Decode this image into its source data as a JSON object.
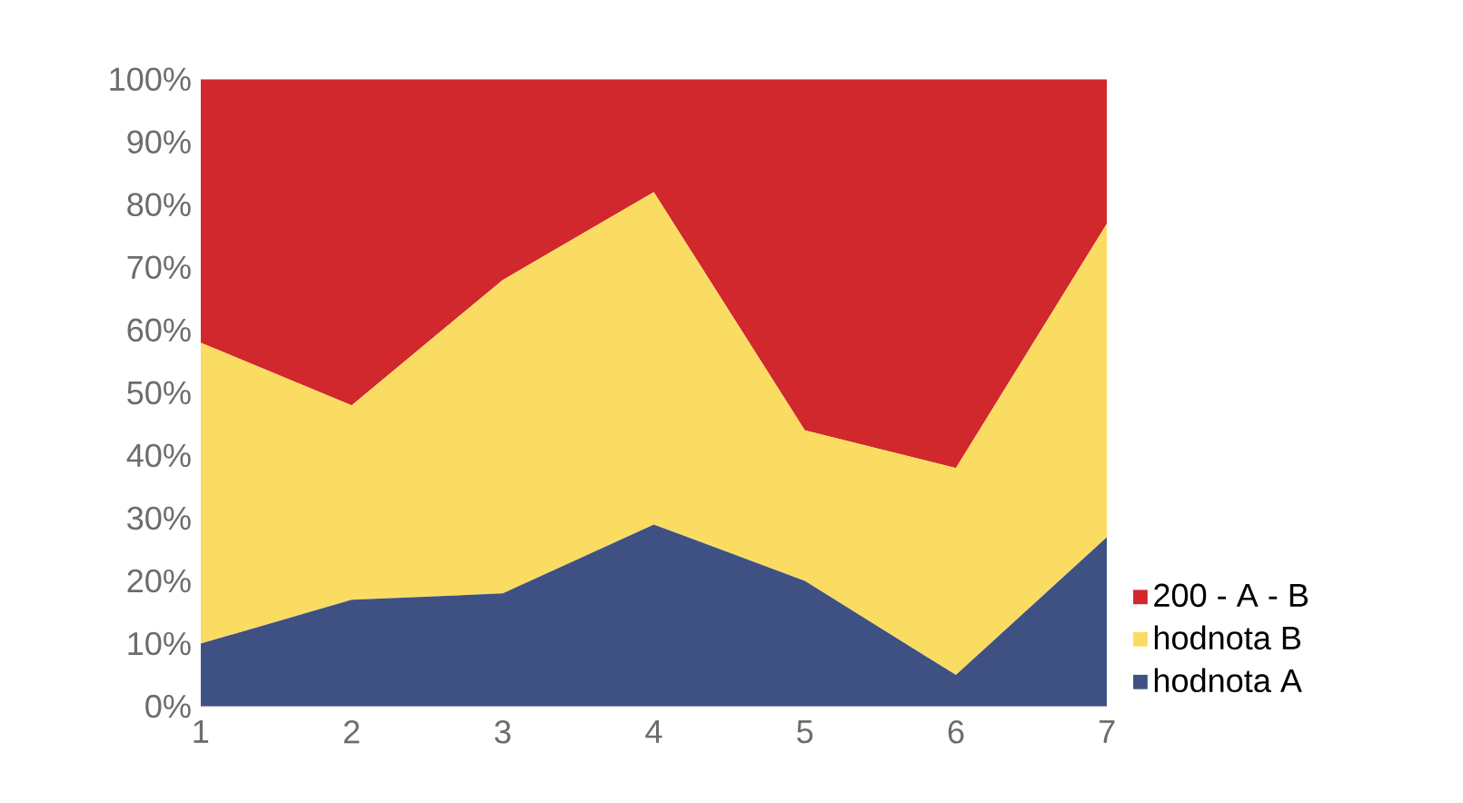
{
  "chart_data": {
    "type": "area",
    "stacked": true,
    "categories": [
      "1",
      "2",
      "3",
      "4",
      "5",
      "6",
      "7"
    ],
    "series": [
      {
        "name": "hodnota A",
        "color": "#3f5183",
        "values": [
          10,
          17,
          18,
          29,
          20,
          5,
          27
        ]
      },
      {
        "name": "hodnota B",
        "color": "#fbdc62",
        "values": [
          48,
          31,
          50,
          53,
          24,
          33,
          50
        ]
      },
      {
        "name": "200 - A - B",
        "color": "#d0282d",
        "values": [
          42,
          52,
          32,
          18,
          56,
          62,
          23
        ]
      }
    ],
    "ylim": [
      0,
      100
    ],
    "yticks": [
      {
        "value": 0,
        "label": "0%"
      },
      {
        "value": 10,
        "label": "10%"
      },
      {
        "value": 20,
        "label": "20%"
      },
      {
        "value": 30,
        "label": "30%"
      },
      {
        "value": 40,
        "label": "40%"
      },
      {
        "value": 50,
        "label": "50%"
      },
      {
        "value": 60,
        "label": "60%"
      },
      {
        "value": 70,
        "label": "70%"
      },
      {
        "value": 80,
        "label": "80%"
      },
      {
        "value": 90,
        "label": "90%"
      },
      {
        "value": 100,
        "label": "100%"
      }
    ],
    "grid": false,
    "legend": "right"
  }
}
